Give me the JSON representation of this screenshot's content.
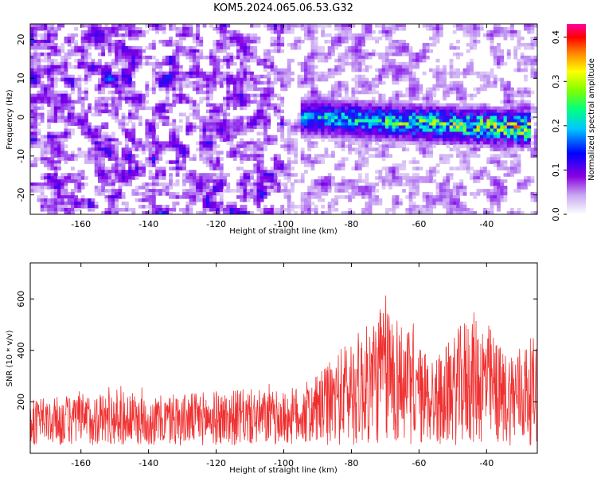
{
  "chart_data": [
    {
      "type": "heatmap",
      "title": "KOM5.2024.065.06.53.G32",
      "xlabel": "Height of straight line (km)",
      "ylabel": "Frequency (Hz)",
      "xlim": [
        -175,
        -25
      ],
      "ylim": [
        -25,
        24
      ],
      "x_ticks": [
        -160,
        -140,
        -120,
        -100,
        -80,
        -60,
        -40
      ],
      "y_ticks": [
        -20,
        -10,
        0,
        10,
        20
      ],
      "colorbar": {
        "label": "Normalized spectral amplitude",
        "range": [
          0,
          0.43
        ],
        "ticks": [
          "0.0",
          "0.1",
          "0.2",
          "0.3",
          "0.4"
        ],
        "tick_values": [
          0.0,
          0.1,
          0.2,
          0.3,
          0.4
        ]
      },
      "signal_band": {
        "x_range": [
          -95,
          -27
        ],
        "center_freq_start": 0,
        "center_freq_end": -3,
        "peak_value": 0.42
      }
    },
    {
      "type": "line",
      "xlabel": "Height of straight line (km)",
      "ylabel": "SNR (10 * v/v)",
      "xlim": [
        -175,
        -25
      ],
      "ylim": [
        0,
        740
      ],
      "x_ticks": [
        -160,
        -140,
        -120,
        -100,
        -80,
        -60,
        -40
      ],
      "y_ticks": [
        200,
        400,
        600
      ],
      "color": "#f03030",
      "envelope": [
        {
          "x": -175,
          "y": 210
        },
        {
          "x": -160,
          "y": 230
        },
        {
          "x": -150,
          "y": 250
        },
        {
          "x": -140,
          "y": 220
        },
        {
          "x": -125,
          "y": 240
        },
        {
          "x": -110,
          "y": 250
        },
        {
          "x": -100,
          "y": 240
        },
        {
          "x": -90,
          "y": 300
        },
        {
          "x": -85,
          "y": 380
        },
        {
          "x": -80,
          "y": 460
        },
        {
          "x": -75,
          "y": 500
        },
        {
          "x": -70,
          "y": 620
        },
        {
          "x": -65,
          "y": 520
        },
        {
          "x": -60,
          "y": 420
        },
        {
          "x": -55,
          "y": 380
        },
        {
          "x": -50,
          "y": 450
        },
        {
          "x": -45,
          "y": 560
        },
        {
          "x": -40,
          "y": 520
        },
        {
          "x": -35,
          "y": 400
        },
        {
          "x": -30,
          "y": 430
        },
        {
          "x": -25,
          "y": 460
        }
      ]
    }
  ]
}
